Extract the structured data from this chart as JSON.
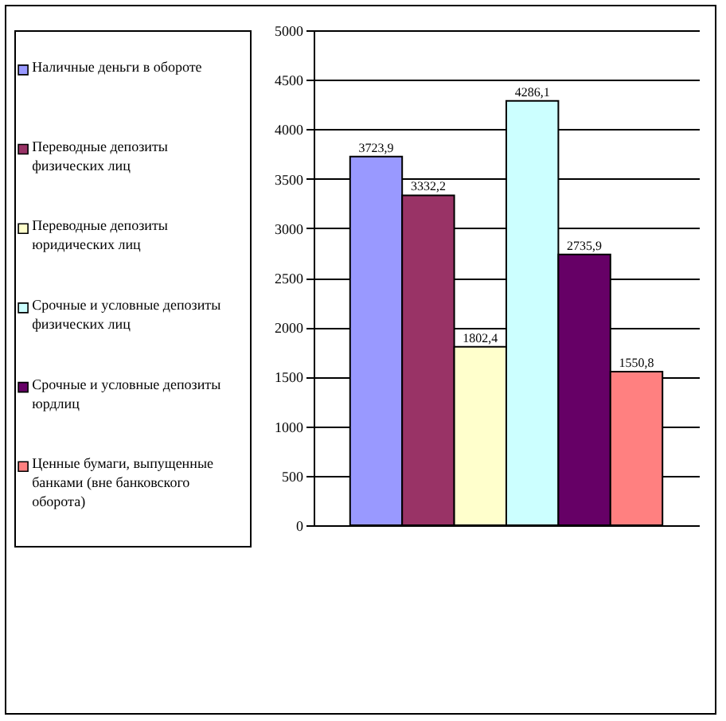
{
  "chart_data": {
    "type": "bar",
    "categories": [
      null
    ],
    "series": [
      {
        "name": "Наличные деньги в обороте",
        "color": "#9999ff",
        "values": [
          3723.9
        ],
        "value_labels": [
          "3723,9"
        ]
      },
      {
        "name": "Переводные депозиты физических лиц",
        "color": "#993366",
        "values": [
          3332.2
        ],
        "value_labels": [
          "3332,2"
        ]
      },
      {
        "name": "Переводные депозиты юридических лиц",
        "color": "#ffffcc",
        "values": [
          1802.4
        ],
        "value_labels": [
          "1802,4"
        ]
      },
      {
        "name": "Срочные и условные депозиты физических лиц",
        "color": "#ccffff",
        "values": [
          4286.1
        ],
        "value_labels": [
          "4286,1"
        ]
      },
      {
        "name": "Срочные и условные депозиты юрдлиц",
        "color": "#660066",
        "values": [
          2735.9
        ],
        "value_labels": [
          "2735,9"
        ]
      },
      {
        "name": "Ценные бумаги, выпущенные банками (вне банковского оборота)",
        "color": "#ff8080",
        "values": [
          1550.8
        ],
        "value_labels": [
          "1550,8"
        ]
      }
    ],
    "ylim": [
      0,
      5000
    ],
    "yticks": [
      0,
      500,
      1000,
      1500,
      2000,
      2500,
      3000,
      3500,
      4000,
      4500,
      5000
    ],
    "grid": "y",
    "legend": "left"
  }
}
